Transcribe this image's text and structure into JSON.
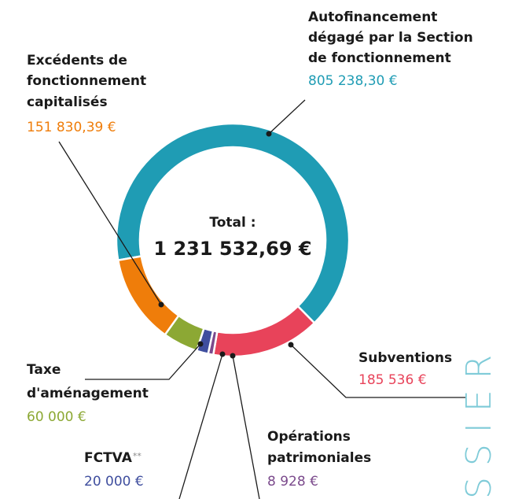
{
  "chart_data": {
    "type": "donut",
    "center_label": [
      "Total :",
      "1 231 532,69 €"
    ],
    "categories": [
      [
        "Autofinancement",
        "dégagé par la Section",
        "de fonctionnement"
      ],
      [
        "Subventions"
      ],
      [
        "Opérations",
        "patrimoniales"
      ],
      [
        "FCTVA"
      ],
      [
        "Taxe",
        "d'aménagement"
      ],
      [
        "Excédents de",
        "fonctionnement",
        "capitalisés"
      ]
    ],
    "category_notes": [
      null,
      null,
      null,
      "**",
      null,
      null
    ],
    "values": [
      805238.3,
      185536,
      8928,
      20000,
      60000,
      151830.39
    ],
    "value_labels": [
      "805 238,30 €",
      "185 536 €",
      "8 928 €",
      "20 000 €",
      "60 000 €",
      "151 830,39 €"
    ],
    "colors": [
      "#1f9cb4",
      "#e8435a",
      "#7b4a8c",
      "#3f4e9e",
      "#8ca834",
      "#ef7d0a"
    ],
    "side_label": "SSIER"
  }
}
